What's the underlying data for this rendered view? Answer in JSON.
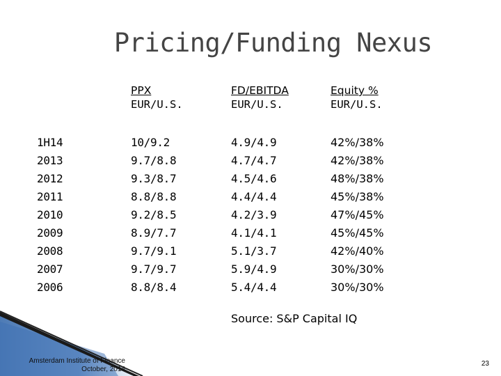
{
  "title": "Pricing/Funding Nexus",
  "headers": [
    {
      "name": "PPX",
      "sub": "EUR/U.S."
    },
    {
      "name": "FD/EBITDA",
      "sub": "EUR/U.S."
    },
    {
      "name": "Equity %",
      "sub": "EUR/U.S."
    }
  ],
  "years": [
    "1H14",
    "2013",
    "2012",
    "2011",
    "2010",
    "2009",
    "2008",
    "2007",
    "2006"
  ],
  "ppx": [
    "10/9.2",
    "9.7/8.8",
    "9.3/8.7",
    "8.8/8.8",
    "9.2/8.5",
    "8.9/7.7",
    "9.7/9.1",
    "9.7/9.7",
    "8.8/8.4"
  ],
  "fd_ebitda": [
    "4.9/4.9",
    "4.7/4.7",
    "4.5/4.6",
    "4.4/4.4",
    "4.2/3.9",
    "4.1/4.1",
    "5.1/3.7",
    "5.9/4.9",
    "5.4/4.4"
  ],
  "equity": [
    "42%/38%",
    "42%/38%",
    "48%/38%",
    "45%/38%",
    "47%/45%",
    "45%/45%",
    "42%/40%",
    "30%/30%",
    "30%/30%"
  ],
  "source": "Source:  S&P Capital IQ",
  "footer": {
    "line1": "Amsterdam Institute of Finance",
    "line2": "October, 2014"
  },
  "page_number": "23",
  "colors": {
    "decor_blue": "#3a6fb0",
    "decor_dark": "#1a1a1a",
    "title": "#444444"
  }
}
